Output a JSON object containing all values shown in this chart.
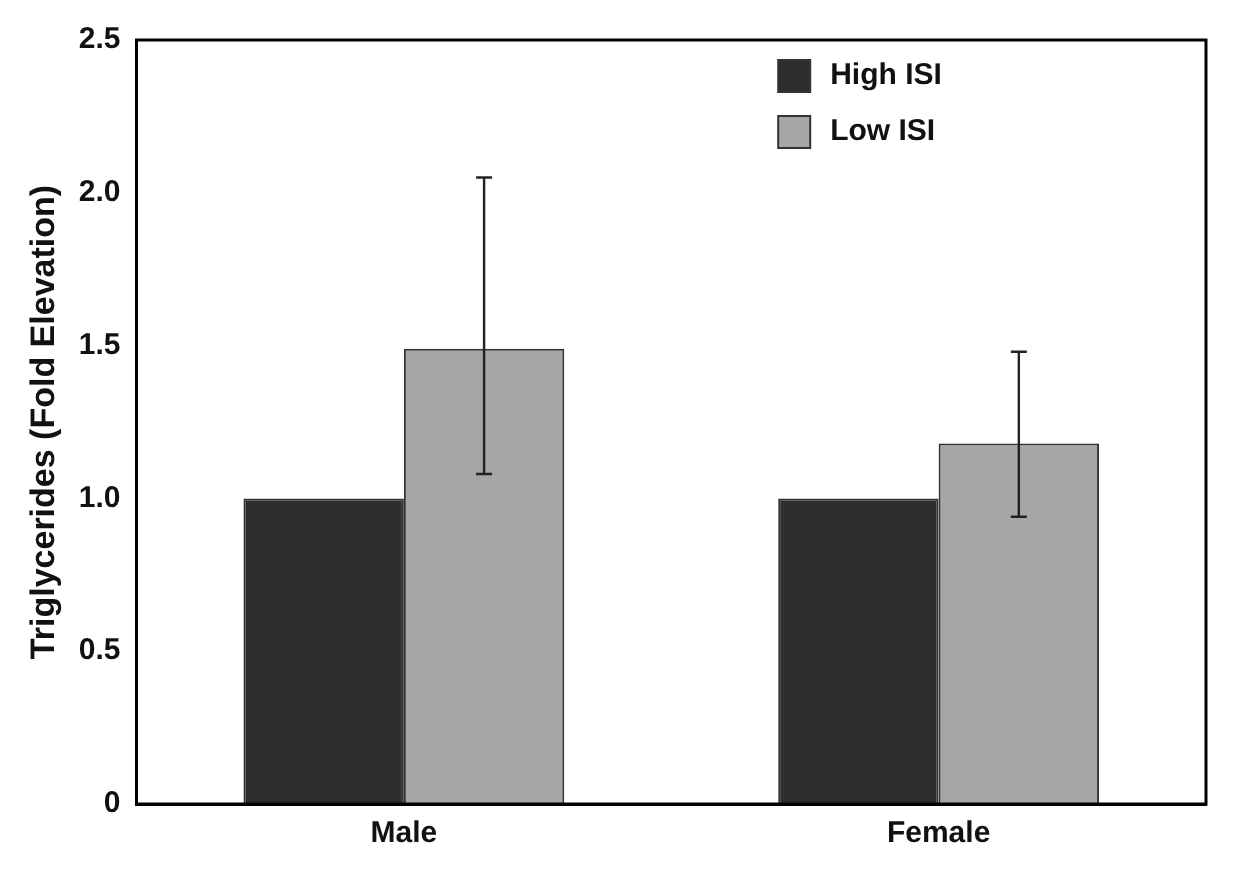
{
  "chart_data": {
    "type": "bar",
    "ylabel": "Triglycerides (Fold Elevation)",
    "categories": [
      "Male",
      "Female"
    ],
    "series": [
      {
        "name": "High ISI",
        "color": "#2e2e2e",
        "values": [
          1.0,
          1.0
        ]
      },
      {
        "name": "Low ISI",
        "color": "#a6a6a6",
        "values": [
          1.49,
          1.18
        ],
        "errors": [
          [
            1.08,
            2.05
          ],
          [
            0.94,
            1.48
          ]
        ]
      }
    ],
    "ylim": [
      0,
      2.5
    ],
    "yticks": [
      0,
      {
        "value": 0.5,
        "label": "0.5"
      },
      {
        "value": 1,
        "label": "1.0"
      },
      {
        "value": 1.5,
        "label": "1.5"
      },
      {
        "value": 2,
        "label": "2.0"
      },
      {
        "value": 2.5,
        "label": "2.5"
      }
    ],
    "grid": false,
    "legend": "top right"
  }
}
